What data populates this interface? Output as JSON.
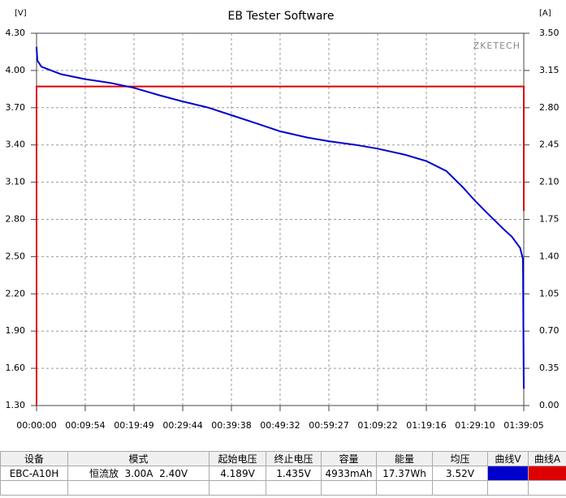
{
  "chart_data": {
    "type": "line",
    "title": "EB Tester Software",
    "watermark": "ZKETECH",
    "ylabel": "[V]",
    "y2label": "[A]",
    "xlim": [
      0,
      5945
    ],
    "xticks": [
      {
        "value": 0,
        "label": "00:00:00"
      },
      {
        "value": 594,
        "label": "00:09:54"
      },
      {
        "value": 1189,
        "label": "00:19:49"
      },
      {
        "value": 1784,
        "label": "00:29:44"
      },
      {
        "value": 2378,
        "label": "00:39:38"
      },
      {
        "value": 2972,
        "label": "00:49:32"
      },
      {
        "value": 3567,
        "label": "00:59:27"
      },
      {
        "value": 4162,
        "label": "01:09:22"
      },
      {
        "value": 4756,
        "label": "01:19:16"
      },
      {
        "value": 5350,
        "label": "01:29:10"
      },
      {
        "value": 5945,
        "label": "01:39:05"
      }
    ],
    "ylim": [
      1.3,
      4.3
    ],
    "yticks": [
      {
        "value": 1.3,
        "label": "1.30"
      },
      {
        "value": 1.6,
        "label": "1.60"
      },
      {
        "value": 1.9,
        "label": "1.90"
      },
      {
        "value": 2.2,
        "label": "2.20"
      },
      {
        "value": 2.5,
        "label": "2.50"
      },
      {
        "value": 2.8,
        "label": "2.80"
      },
      {
        "value": 3.1,
        "label": "3.10"
      },
      {
        "value": 3.4,
        "label": "3.40"
      },
      {
        "value": 3.7,
        "label": "3.70"
      },
      {
        "value": 4.0,
        "label": "4.00"
      },
      {
        "value": 4.3,
        "label": "4.30"
      }
    ],
    "y2lim": [
      0,
      3.5
    ],
    "y2ticks": [
      {
        "value": 0,
        "label": "0.00"
      },
      {
        "value": 0.35,
        "label": "0.35"
      },
      {
        "value": 0.7,
        "label": "0.70"
      },
      {
        "value": 1.05,
        "label": "1.05"
      },
      {
        "value": 1.4,
        "label": "1.40"
      },
      {
        "value": 1.75,
        "label": "1.75"
      },
      {
        "value": 2.1,
        "label": "2.10"
      },
      {
        "value": 2.45,
        "label": "2.45"
      },
      {
        "value": 2.8,
        "label": "2.80"
      },
      {
        "value": 3.15,
        "label": "3.15"
      },
      {
        "value": 3.5,
        "label": "3.50"
      }
    ],
    "grid": true,
    "series": [
      {
        "color": "#0000cc",
        "x": [
          0,
          10,
          60,
          300,
          594,
          900,
          1189,
          1500,
          1784,
          2100,
          2378,
          2700,
          2972,
          3300,
          3567,
          3900,
          4162,
          4500,
          4756,
          5000,
          5200,
          5350,
          5500,
          5700,
          5800,
          5900,
          5935,
          5945
        ],
        "values": [
          4.19,
          4.08,
          4.03,
          3.97,
          3.93,
          3.9,
          3.86,
          3.8,
          3.75,
          3.7,
          3.64,
          3.57,
          3.51,
          3.46,
          3.43,
          3.4,
          3.37,
          3.32,
          3.27,
          3.19,
          3.06,
          2.95,
          2.85,
          2.72,
          2.66,
          2.57,
          2.48,
          1.435
        ]
      },
      {
        "color": "#dd0000",
        "axis": "y2",
        "x": [
          0,
          0,
          5945,
          5945
        ],
        "values": [
          0,
          3.0,
          3.0,
          1.83
        ]
      }
    ]
  },
  "table": {
    "headers": [
      "设备",
      "模式",
      "起始电压",
      "终止电压",
      "容量",
      "能量",
      "均压",
      "曲线V",
      "曲线A"
    ],
    "rows": [
      [
        "EBC-A10H",
        "恒流放  3.00A  2.40V",
        "4.189V",
        "1.435V",
        "4933mAh",
        "17.37Wh",
        "3.52V"
      ]
    ]
  }
}
